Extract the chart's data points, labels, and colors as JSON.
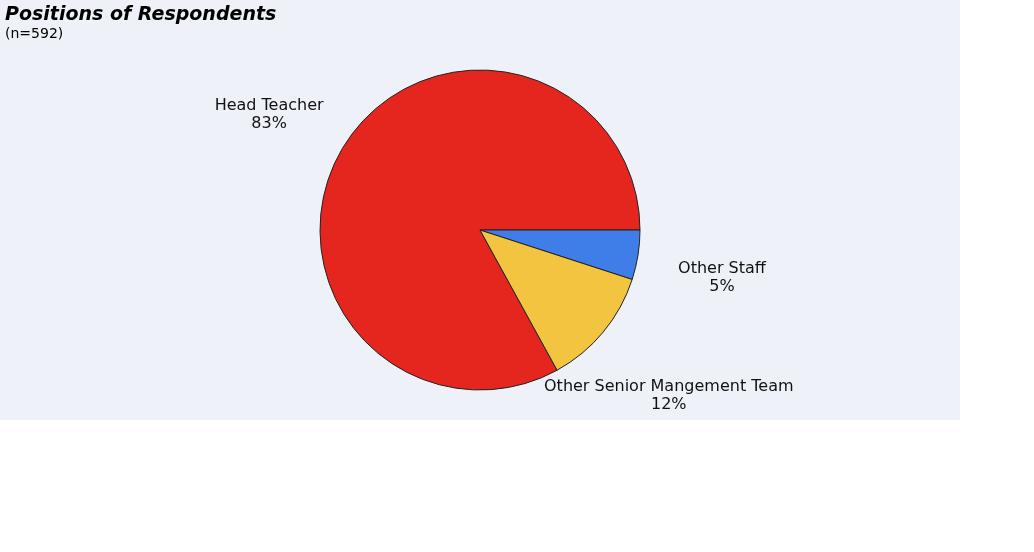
{
  "chart_data": {
    "type": "pie",
    "title": "Positions of Respondents",
    "subtitle": "(n=592)",
    "categories": [
      "Head Teacher",
      "Other Staff",
      "Other Senior Mangement Team"
    ],
    "values": [
      83,
      5,
      12
    ],
    "colors": [
      "#e5261f",
      "#3f7de8",
      "#f2c440"
    ],
    "value_labels": [
      "83%",
      "5%",
      "12%"
    ],
    "legend": false
  }
}
